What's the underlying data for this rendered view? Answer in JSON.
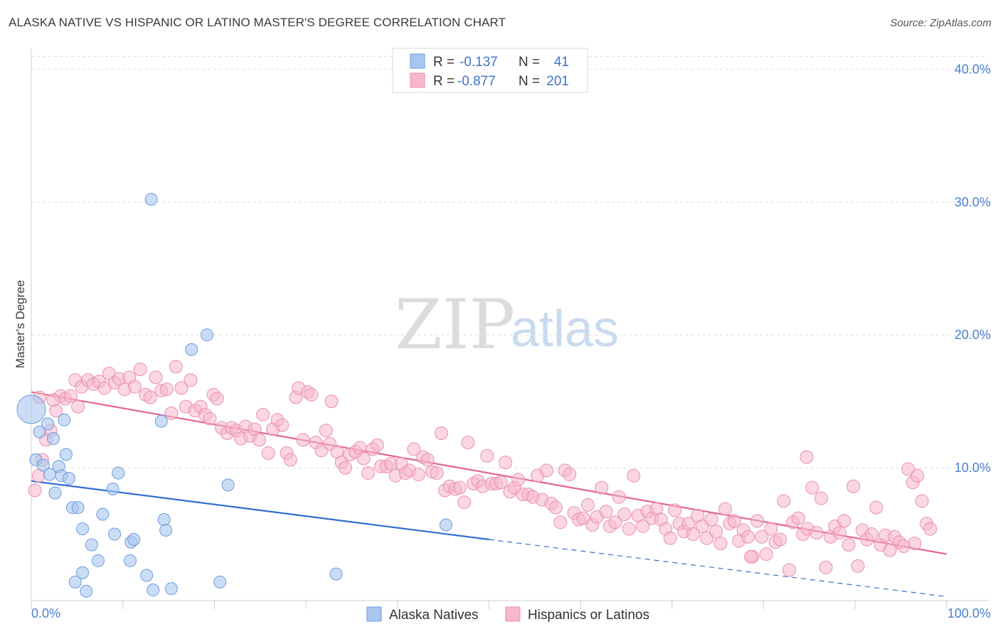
{
  "title": "ALASKA NATIVE VS HISPANIC OR LATINO MASTER'S DEGREE CORRELATION CHART",
  "source": "Source: ZipAtlas.com",
  "watermark": {
    "zip": "ZIP",
    "atlas": "atlas"
  },
  "colors": {
    "blue_fill": "#a9c6ef",
    "blue_stroke": "#6b9be0",
    "blue_line": "#2f6fd0",
    "pink_fill": "#f6b7cb",
    "pink_stroke": "#ea8fae",
    "pink_line": "#e0668f",
    "grid": "#dddddd",
    "tick_text": "#4a7fd0"
  },
  "legend_top": {
    "rows": [
      {
        "r_label": "R =",
        "r_value": "-0.137",
        "n_label": "N =",
        "n_value": "41",
        "color": "blue"
      },
      {
        "r_label": "R =",
        "r_value": "-0.877",
        "n_label": "N =",
        "n_value": "201",
        "color": "pink"
      }
    ]
  },
  "legend_bottom": [
    {
      "label": "Alaska Natives",
      "color": "blue"
    },
    {
      "label": "Hispanics or Latinos",
      "color": "pink"
    }
  ],
  "chart_data": {
    "type": "scatter",
    "ylabel": "Master's Degree",
    "xlabel": "",
    "xlim": [
      0,
      100
    ],
    "ylim": [
      0,
      42
    ],
    "x_tick_labels": [
      "0.0%",
      "100.0%"
    ],
    "y_ticks": [
      10,
      20,
      30,
      40
    ],
    "y_tick_labels": [
      "10.0%",
      "20.0%",
      "30.0%",
      "40.0%"
    ],
    "grid": "horizontal dashed",
    "series": [
      {
        "name": "Alaska Natives",
        "color": "blue",
        "trend": {
          "x0": 0,
          "y0": 9.0,
          "x1": 50,
          "y1": 4.6,
          "dashed_to": 100,
          "dashed_y": 0.3
        },
        "points": [
          [
            0.0,
            14.4
          ],
          [
            0.5,
            10.6
          ],
          [
            0.9,
            12.7
          ],
          [
            1.3,
            10.2
          ],
          [
            1.8,
            13.3
          ],
          [
            2.0,
            9.5
          ],
          [
            2.4,
            12.2
          ],
          [
            2.6,
            8.1
          ],
          [
            3.0,
            10.1
          ],
          [
            3.3,
            9.4
          ],
          [
            3.6,
            13.6
          ],
          [
            3.8,
            11.0
          ],
          [
            4.1,
            9.2
          ],
          [
            4.5,
            7.0
          ],
          [
            4.8,
            1.4
          ],
          [
            5.1,
            7.0
          ],
          [
            5.6,
            5.4
          ],
          [
            5.6,
            2.1
          ],
          [
            6.0,
            0.7
          ],
          [
            6.6,
            4.2
          ],
          [
            7.3,
            3.0
          ],
          [
            7.8,
            6.5
          ],
          [
            8.9,
            8.4
          ],
          [
            9.1,
            5.0
          ],
          [
            9.5,
            9.6
          ],
          [
            10.8,
            3.0
          ],
          [
            10.9,
            4.4
          ],
          [
            11.2,
            4.6
          ],
          [
            12.6,
            1.9
          ],
          [
            13.1,
            30.2
          ],
          [
            13.3,
            0.8
          ],
          [
            14.2,
            13.5
          ],
          [
            14.5,
            6.1
          ],
          [
            14.7,
            5.3
          ],
          [
            15.3,
            0.9
          ],
          [
            17.5,
            18.9
          ],
          [
            20.6,
            1.4
          ],
          [
            19.2,
            20.0
          ],
          [
            21.5,
            8.7
          ],
          [
            33.3,
            2.0
          ],
          [
            45.3,
            5.7
          ]
        ]
      },
      {
        "name": "Hispanics or Latinos",
        "color": "pink",
        "trend": {
          "x0": 0,
          "y0": 15.7,
          "x1": 100,
          "y1": 3.5
        },
        "points": [
          [
            0.4,
            8.3
          ],
          [
            0.8,
            9.4
          ],
          [
            1.2,
            10.6
          ],
          [
            1.6,
            12.1
          ],
          [
            2.1,
            12.8
          ],
          [
            2.7,
            14.3
          ],
          [
            3.2,
            15.4
          ],
          [
            3.7,
            15.2
          ],
          [
            4.3,
            15.4
          ],
          [
            4.8,
            16.6
          ],
          [
            5.5,
            16.1
          ],
          [
            6.2,
            16.6
          ],
          [
            6.8,
            16.3
          ],
          [
            7.4,
            16.5
          ],
          [
            8.0,
            16.0
          ],
          [
            8.5,
            17.1
          ],
          [
            9.1,
            16.4
          ],
          [
            9.6,
            16.7
          ],
          [
            10.2,
            15.9
          ],
          [
            10.7,
            16.8
          ],
          [
            11.3,
            16.1
          ],
          [
            11.9,
            17.4
          ],
          [
            12.5,
            15.5
          ],
          [
            13.0,
            15.3
          ],
          [
            13.6,
            16.8
          ],
          [
            14.2,
            15.8
          ],
          [
            14.8,
            15.9
          ],
          [
            15.3,
            14.1
          ],
          [
            15.8,
            17.6
          ],
          [
            16.4,
            16.0
          ],
          [
            16.9,
            14.6
          ],
          [
            17.4,
            16.6
          ],
          [
            17.9,
            14.3
          ],
          [
            18.5,
            14.6
          ],
          [
            19.0,
            14.0
          ],
          [
            19.5,
            13.7
          ],
          [
            19.9,
            15.5
          ],
          [
            20.3,
            15.2
          ],
          [
            20.8,
            13.0
          ],
          [
            21.4,
            12.6
          ],
          [
            21.9,
            13.0
          ],
          [
            22.4,
            12.8
          ],
          [
            22.9,
            12.2
          ],
          [
            23.4,
            13.1
          ],
          [
            23.9,
            12.4
          ],
          [
            24.4,
            12.9
          ],
          [
            24.9,
            12.1
          ],
          [
            25.3,
            14.0
          ],
          [
            25.9,
            11.1
          ],
          [
            26.4,
            12.9
          ],
          [
            26.9,
            13.6
          ],
          [
            27.4,
            13.2
          ],
          [
            27.9,
            11.1
          ],
          [
            28.3,
            10.6
          ],
          [
            28.9,
            15.3
          ],
          [
            29.2,
            16.0
          ],
          [
            29.7,
            12.1
          ],
          [
            30.2,
            15.7
          ],
          [
            30.6,
            15.5
          ],
          [
            31.1,
            11.9
          ],
          [
            31.7,
            11.3
          ],
          [
            32.2,
            12.8
          ],
          [
            32.6,
            11.8
          ],
          [
            32.8,
            15.0
          ],
          [
            33.4,
            11.2
          ],
          [
            33.9,
            10.4
          ],
          [
            34.3,
            10.0
          ],
          [
            34.8,
            11.0
          ],
          [
            35.4,
            11.2
          ],
          [
            35.9,
            11.5
          ],
          [
            36.3,
            10.7
          ],
          [
            36.8,
            9.6
          ],
          [
            37.3,
            11.4
          ],
          [
            37.8,
            11.7
          ],
          [
            38.2,
            10.1
          ],
          [
            38.8,
            10.1
          ],
          [
            39.3,
            10.3
          ],
          [
            39.8,
            9.4
          ],
          [
            40.4,
            10.3
          ],
          [
            40.9,
            9.6
          ],
          [
            41.3,
            9.8
          ],
          [
            41.8,
            11.4
          ],
          [
            42.3,
            9.5
          ],
          [
            42.8,
            10.8
          ],
          [
            43.3,
            10.6
          ],
          [
            43.8,
            9.7
          ],
          [
            44.3,
            9.6
          ],
          [
            44.8,
            12.6
          ],
          [
            45.2,
            8.3
          ],
          [
            45.7,
            8.6
          ],
          [
            46.3,
            8.4
          ],
          [
            46.8,
            8.5
          ],
          [
            47.3,
            7.4
          ],
          [
            47.7,
            11.9
          ],
          [
            48.3,
            8.8
          ],
          [
            48.8,
            9.0
          ],
          [
            49.3,
            8.6
          ],
          [
            49.8,
            10.9
          ],
          [
            50.3,
            8.8
          ],
          [
            50.8,
            8.8
          ],
          [
            51.3,
            8.9
          ],
          [
            51.8,
            10.4
          ],
          [
            52.3,
            8.2
          ],
          [
            52.8,
            8.5
          ],
          [
            53.2,
            9.1
          ],
          [
            53.7,
            8.0
          ],
          [
            54.3,
            8.0
          ],
          [
            54.8,
            7.8
          ],
          [
            55.3,
            9.4
          ],
          [
            55.8,
            7.6
          ],
          [
            56.3,
            9.8
          ],
          [
            56.8,
            7.3
          ],
          [
            57.3,
            7.0
          ],
          [
            57.8,
            5.9
          ],
          [
            58.3,
            9.8
          ],
          [
            58.8,
            9.5
          ],
          [
            59.3,
            6.6
          ],
          [
            59.8,
            6.1
          ],
          [
            60.3,
            6.2
          ],
          [
            60.8,
            7.2
          ],
          [
            61.3,
            5.7
          ],
          [
            61.8,
            6.3
          ],
          [
            62.3,
            8.5
          ],
          [
            62.8,
            6.7
          ],
          [
            63.2,
            5.6
          ],
          [
            63.8,
            5.9
          ],
          [
            64.2,
            7.8
          ],
          [
            64.8,
            6.5
          ],
          [
            65.3,
            5.4
          ],
          [
            65.8,
            9.4
          ],
          [
            66.3,
            6.4
          ],
          [
            66.8,
            5.6
          ],
          [
            67.3,
            6.7
          ],
          [
            67.8,
            6.2
          ],
          [
            68.3,
            6.9
          ],
          [
            68.8,
            6.1
          ],
          [
            69.3,
            5.4
          ],
          [
            69.8,
            4.7
          ],
          [
            70.3,
            6.8
          ],
          [
            70.8,
            5.8
          ],
          [
            71.3,
            5.2
          ],
          [
            71.8,
            5.8
          ],
          [
            72.3,
            5.0
          ],
          [
            72.8,
            6.4
          ],
          [
            73.3,
            5.6
          ],
          [
            73.8,
            4.7
          ],
          [
            74.3,
            6.1
          ],
          [
            74.8,
            5.2
          ],
          [
            75.3,
            4.3
          ],
          [
            75.8,
            6.9
          ],
          [
            76.3,
            5.8
          ],
          [
            76.8,
            6.0
          ],
          [
            77.3,
            4.5
          ],
          [
            77.8,
            5.3
          ],
          [
            78.3,
            4.8
          ],
          [
            78.8,
            3.3
          ],
          [
            79.3,
            6.0
          ],
          [
            79.8,
            4.8
          ],
          [
            80.3,
            3.5
          ],
          [
            80.8,
            5.4
          ],
          [
            81.3,
            4.4
          ],
          [
            81.8,
            4.6
          ],
          [
            82.2,
            7.5
          ],
          [
            82.8,
            2.3
          ],
          [
            83.2,
            5.9
          ],
          [
            83.8,
            6.2
          ],
          [
            84.3,
            5.0
          ],
          [
            84.8,
            5.4
          ],
          [
            85.3,
            8.5
          ],
          [
            85.8,
            5.1
          ],
          [
            86.3,
            7.7
          ],
          [
            86.8,
            2.5
          ],
          [
            87.3,
            4.8
          ],
          [
            87.8,
            5.6
          ],
          [
            88.3,
            5.1
          ],
          [
            88.8,
            6.0
          ],
          [
            89.3,
            4.2
          ],
          [
            89.8,
            8.6
          ],
          [
            90.3,
            2.6
          ],
          [
            90.8,
            5.3
          ],
          [
            91.3,
            4.6
          ],
          [
            91.8,
            5.0
          ],
          [
            92.3,
            7.0
          ],
          [
            92.8,
            4.2
          ],
          [
            93.3,
            4.9
          ],
          [
            93.8,
            3.8
          ],
          [
            94.3,
            4.8
          ],
          [
            94.8,
            4.4
          ],
          [
            95.3,
            4.1
          ],
          [
            95.8,
            9.9
          ],
          [
            96.3,
            8.9
          ],
          [
            96.8,
            9.4
          ],
          [
            97.3,
            7.5
          ],
          [
            97.8,
            5.8
          ],
          [
            98.2,
            5.4
          ],
          [
            78.6,
            3.3
          ],
          [
            84.7,
            10.8
          ],
          [
            0.9,
            15.3
          ],
          [
            2.4,
            15.1
          ],
          [
            5.1,
            14.6
          ],
          [
            96.5,
            4.3
          ]
        ]
      }
    ]
  }
}
